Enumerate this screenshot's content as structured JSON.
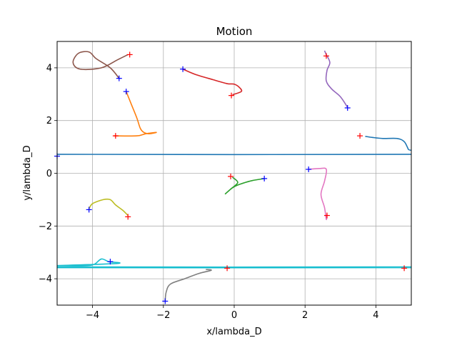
{
  "chart_data": {
    "type": "line",
    "title": "Motion",
    "xlabel": "x/lambda_D",
    "ylabel": "y/lambda_D",
    "xlim": [
      -5,
      5
    ],
    "ylim": [
      -5,
      5
    ],
    "xticks": [
      -4,
      -2,
      0,
      2,
      4
    ],
    "yticks": [
      -4,
      -2,
      0,
      2,
      4
    ],
    "grid": true,
    "series": [
      {
        "color": "#1f77b4",
        "points": [
          [
            -5,
            0.72
          ],
          [
            5,
            0.72
          ],
          [
            4.92,
            0.9
          ],
          [
            4.8,
            1.2
          ],
          [
            4.6,
            1.32
          ],
          [
            4.2,
            1.32
          ],
          [
            3.9,
            1.36
          ],
          [
            3.7,
            1.4
          ]
        ],
        "start": [
          -5,
          0.65
        ],
        "end": [
          3.55,
          1.42
        ]
      },
      {
        "color": "#ff7f0e",
        "points": [
          [
            -3.05,
            3.1
          ],
          [
            -2.9,
            2.6
          ],
          [
            -2.75,
            2.1
          ],
          [
            -2.65,
            1.7
          ],
          [
            -2.55,
            1.55
          ],
          [
            -2.4,
            1.5
          ],
          [
            -2.2,
            1.55
          ],
          [
            -2.5,
            1.5
          ],
          [
            -2.75,
            1.42
          ],
          [
            -3.4,
            1.42
          ]
        ],
        "start": [
          -3.05,
          3.1
        ],
        "end": [
          -3.35,
          1.42
        ]
      },
      {
        "color": "#2ca02c",
        "points": [
          [
            0.85,
            -0.2
          ],
          [
            0.5,
            -0.28
          ],
          [
            0.15,
            -0.42
          ],
          [
            -0.05,
            -0.55
          ],
          [
            -0.25,
            -0.78
          ],
          [
            -0.1,
            -0.6
          ],
          [
            0.1,
            -0.35
          ],
          [
            -0.05,
            -0.15
          ]
        ],
        "start": [
          0.85,
          -0.2
        ],
        "end": [
          -0.1,
          -0.12
        ]
      },
      {
        "color": "#d62728",
        "points": [
          [
            -1.45,
            3.95
          ],
          [
            -1.1,
            3.75
          ],
          [
            -0.6,
            3.55
          ],
          [
            -0.2,
            3.4
          ],
          [
            0,
            3.38
          ],
          [
            0.15,
            3.25
          ],
          [
            0.2,
            3.1
          ],
          [
            -0.05,
            2.98
          ]
        ],
        "start": [
          -1.45,
          3.95
        ],
        "end": [
          -0.08,
          2.95
        ]
      },
      {
        "color": "#9467bd",
        "points": [
          [
            3.2,
            2.5
          ],
          [
            3.0,
            2.9
          ],
          [
            2.75,
            3.2
          ],
          [
            2.6,
            3.5
          ],
          [
            2.62,
            3.9
          ],
          [
            2.7,
            4.2
          ],
          [
            2.6,
            4.5
          ],
          [
            2.55,
            4.65
          ]
        ],
        "start": [
          3.2,
          2.48
        ],
        "end": [
          2.6,
          4.45
        ]
      },
      {
        "color": "#8c564b",
        "points": [
          [
            -3.25,
            3.6
          ],
          [
            -3.5,
            4.0
          ],
          [
            -3.9,
            4.35
          ],
          [
            -4.1,
            4.6
          ],
          [
            -4.4,
            4.55
          ],
          [
            -4.55,
            4.2
          ],
          [
            -4.35,
            3.95
          ],
          [
            -3.75,
            4.0
          ],
          [
            -3.3,
            4.3
          ],
          [
            -3.0,
            4.5
          ]
        ],
        "start": [
          -3.25,
          3.6
        ],
        "end": [
          -2.95,
          4.5
        ]
      },
      {
        "color": "#e377c2",
        "points": [
          [
            2.1,
            0.15
          ],
          [
            2.4,
            0.18
          ],
          [
            2.6,
            0.15
          ],
          [
            2.55,
            -0.3
          ],
          [
            2.45,
            -0.8
          ],
          [
            2.55,
            -1.3
          ],
          [
            2.6,
            -1.75
          ],
          [
            2.62,
            -1.55
          ]
        ],
        "start": [
          2.1,
          0.15
        ],
        "end": [
          2.62,
          -1.6
        ]
      },
      {
        "color": "#7f7f7f",
        "points": [
          [
            -1.95,
            -4.85
          ],
          [
            -1.92,
            -4.5
          ],
          [
            -1.8,
            -4.2
          ],
          [
            -1.4,
            -4.0
          ],
          [
            -1.0,
            -3.8
          ],
          [
            -0.65,
            -3.68
          ],
          [
            -0.8,
            -3.65
          ]
        ],
        "start": [
          -1.95,
          -4.85
        ],
        "end": [
          -0.2,
          -3.6
        ]
      },
      {
        "color": "#bcbd22",
        "points": [
          [
            -4.1,
            -1.35
          ],
          [
            -4.0,
            -1.15
          ],
          [
            -3.7,
            -1.0
          ],
          [
            -3.5,
            -1.0
          ],
          [
            -3.35,
            -1.2
          ],
          [
            -3.15,
            -1.4
          ],
          [
            -3.0,
            -1.6
          ]
        ],
        "start": [
          -4.1,
          -1.38
        ],
        "end": [
          -3.0,
          -1.65
        ]
      },
      {
        "color": "#17becf",
        "points": [
          [
            -5,
            -3.5
          ],
          [
            -4.2,
            -3.5
          ],
          [
            -3.95,
            -3.45
          ],
          [
            -3.75,
            -3.25
          ],
          [
            -3.55,
            -3.35
          ],
          [
            -3.3,
            -3.42
          ],
          [
            -5,
            -3.55
          ],
          [
            5,
            -3.55
          ],
          [
            -5,
            -3.58
          ],
          [
            5,
            -3.58
          ]
        ],
        "start": [
          -3.5,
          -3.35
        ],
        "end": [
          4.8,
          -3.6
        ]
      }
    ]
  }
}
